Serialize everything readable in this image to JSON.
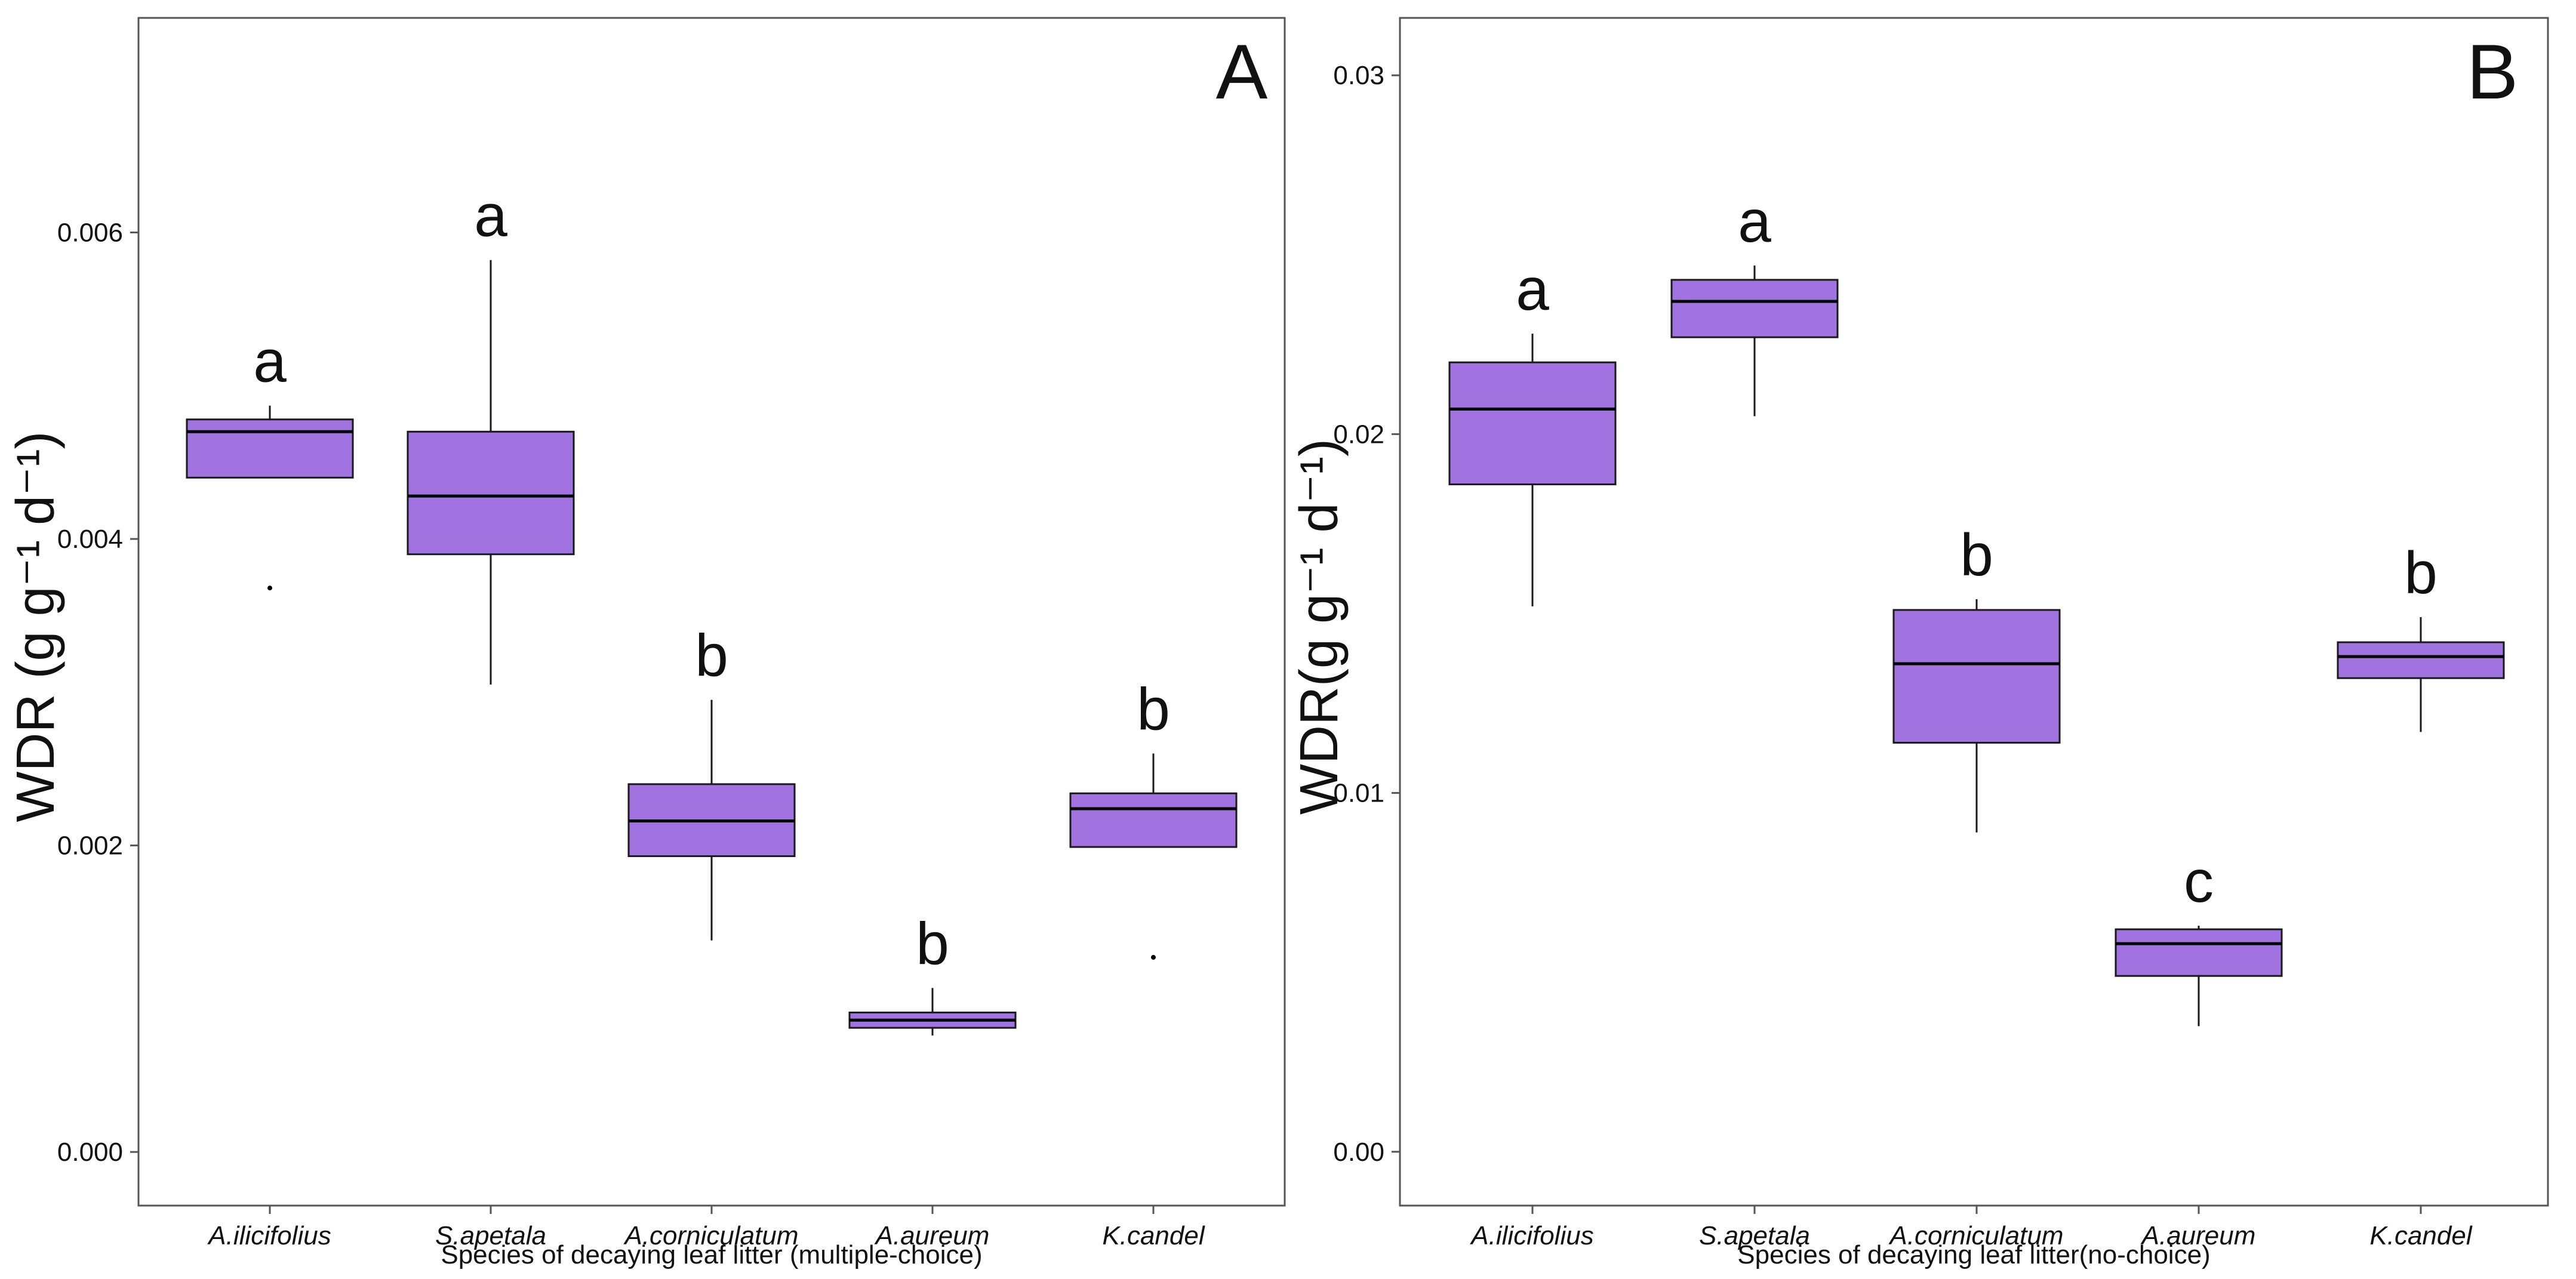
{
  "chart_data": [
    {
      "type": "boxplot",
      "panel_label": "A",
      "xlabel": "Species of decaying leaf litter (multiple-choice)",
      "ylabel": "WDR (g g⁻¹ d⁻¹)",
      "ylim": [
        -0.00035,
        0.0074
      ],
      "yticks": [
        0.0,
        0.002,
        0.004,
        0.006
      ],
      "ytick_labels": [
        "0.000",
        "0.002",
        "0.004",
        "0.006"
      ],
      "categories": [
        "A.ilicifolius",
        "S.apetala",
        "A.corniculatum",
        "A.aureum",
        "K.candel"
      ],
      "boxes": [
        {
          "whisker_low": 0.0044,
          "q1": 0.0044,
          "median": 0.0047,
          "q3": 0.00478,
          "whisker_high": 0.00487,
          "outliers": [
            0.00368
          ],
          "letter": "a"
        },
        {
          "whisker_low": 0.00305,
          "q1": 0.0039,
          "median": 0.00428,
          "q3": 0.0047,
          "whisker_high": 0.00582,
          "outliers": [],
          "letter": "a"
        },
        {
          "whisker_low": 0.00138,
          "q1": 0.00193,
          "median": 0.00216,
          "q3": 0.0024,
          "whisker_high": 0.00295,
          "outliers": [],
          "letter": "b"
        },
        {
          "whisker_low": 0.00076,
          "q1": 0.00081,
          "median": 0.00086,
          "q3": 0.00091,
          "whisker_high": 0.00107,
          "outliers": [],
          "letter": "b"
        },
        {
          "whisker_low": 0.00199,
          "q1": 0.00199,
          "median": 0.00224,
          "q3": 0.00234,
          "whisker_high": 0.0026,
          "outliers": [
            0.00127
          ],
          "letter": "b"
        }
      ]
    },
    {
      "type": "boxplot",
      "panel_label": "B",
      "xlabel": "Species of decaying leaf litter(no-choice)",
      "ylabel": "WDR(g g⁻¹ d⁻¹)",
      "ylim": [
        -0.0015,
        0.0316
      ],
      "yticks": [
        0.0,
        0.01,
        0.02,
        0.03
      ],
      "ytick_labels": [
        "0.00",
        "0.01",
        "0.02",
        "0.03"
      ],
      "categories": [
        "A.ilicifolius",
        "S.apetala",
        "A.corniculatum",
        "A.aureum",
        "K.candel"
      ],
      "boxes": [
        {
          "whisker_low": 0.0152,
          "q1": 0.0186,
          "median": 0.0207,
          "q3": 0.022,
          "whisker_high": 0.0228,
          "outliers": [],
          "letter": "a"
        },
        {
          "whisker_low": 0.0205,
          "q1": 0.0227,
          "median": 0.0237,
          "q3": 0.0243,
          "whisker_high": 0.0247,
          "outliers": [],
          "letter": "a"
        },
        {
          "whisker_low": 0.0089,
          "q1": 0.0114,
          "median": 0.0136,
          "q3": 0.0151,
          "whisker_high": 0.0154,
          "outliers": [],
          "letter": "b"
        },
        {
          "whisker_low": 0.0035,
          "q1": 0.0049,
          "median": 0.0058,
          "q3": 0.0062,
          "whisker_high": 0.0063,
          "outliers": [],
          "letter": "c"
        },
        {
          "whisker_low": 0.0117,
          "q1": 0.0132,
          "median": 0.0138,
          "q3": 0.0142,
          "whisker_high": 0.0149,
          "outliers": [],
          "letter": "b"
        }
      ]
    }
  ],
  "style": {
    "box_fill": "#a073e0",
    "box_stroke": "#1a1a1a",
    "median_stroke": "#000000",
    "panel_border": "#555555",
    "text_color": "#111111"
  }
}
